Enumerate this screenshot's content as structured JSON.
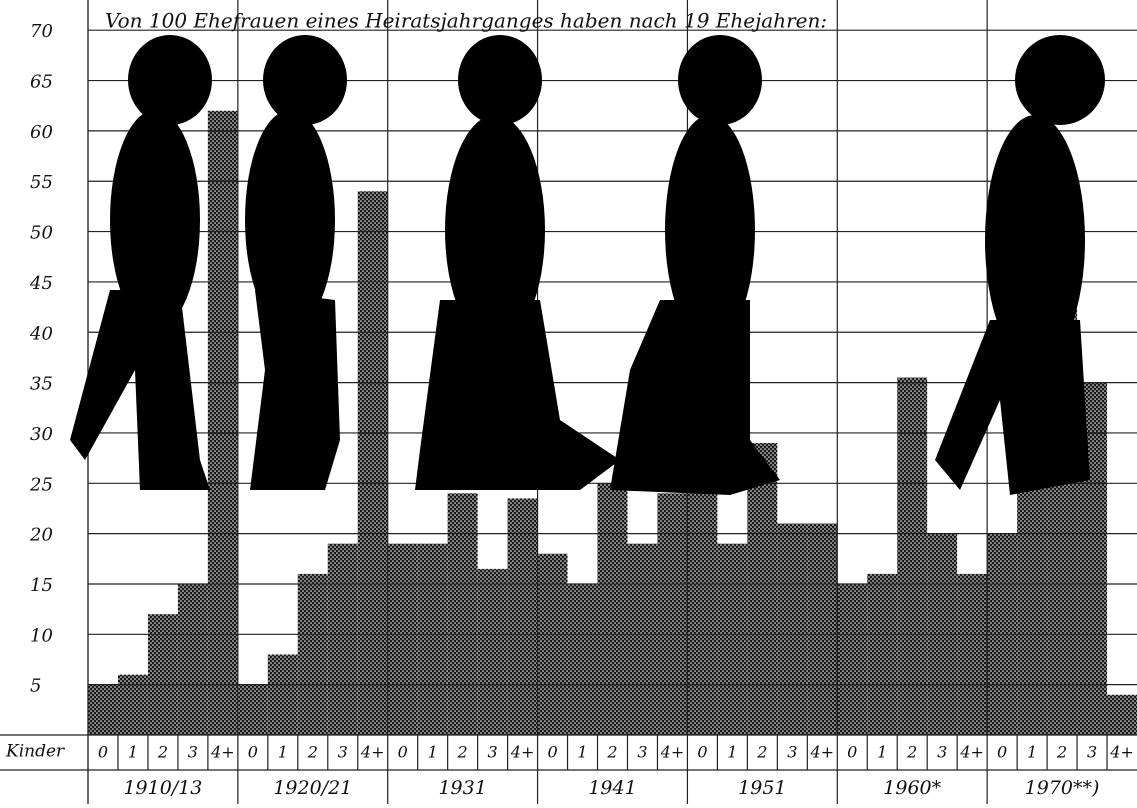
{
  "chart_data": {
    "type": "bar",
    "title": "Von 100 Ehefrauen eines Heiratsjahrganges haben nach 19 Ehejahren:",
    "row_label": "Kinder",
    "categories": [
      "0",
      "1",
      "2",
      "3",
      "4+"
    ],
    "groups": [
      {
        "name": "1910/13",
        "values": [
          5,
          6,
          12,
          15,
          62
        ]
      },
      {
        "name": "1920/21",
        "values": [
          5,
          8,
          16,
          19,
          54
        ]
      },
      {
        "name": "1931",
        "values": [
          19,
          19,
          24,
          16.5,
          23.5
        ]
      },
      {
        "name": "1941",
        "values": [
          18,
          15,
          25,
          19,
          24
        ]
      },
      {
        "name": "1951",
        "values": [
          24,
          19,
          29,
          21,
          21
        ]
      },
      {
        "name": "1960*",
        "values": [
          15,
          16,
          35.5,
          20,
          16
        ]
      },
      {
        "name": "1970**)",
        "values": [
          20,
          31,
          47,
          35,
          4
        ]
      }
    ],
    "color": "#1a1a1a",
    "ylim": [
      0,
      73
    ],
    "yticks": [
      5,
      10,
      15,
      20,
      25,
      30,
      35,
      40,
      45,
      50,
      55,
      60,
      65,
      70
    ],
    "grid": true
  }
}
